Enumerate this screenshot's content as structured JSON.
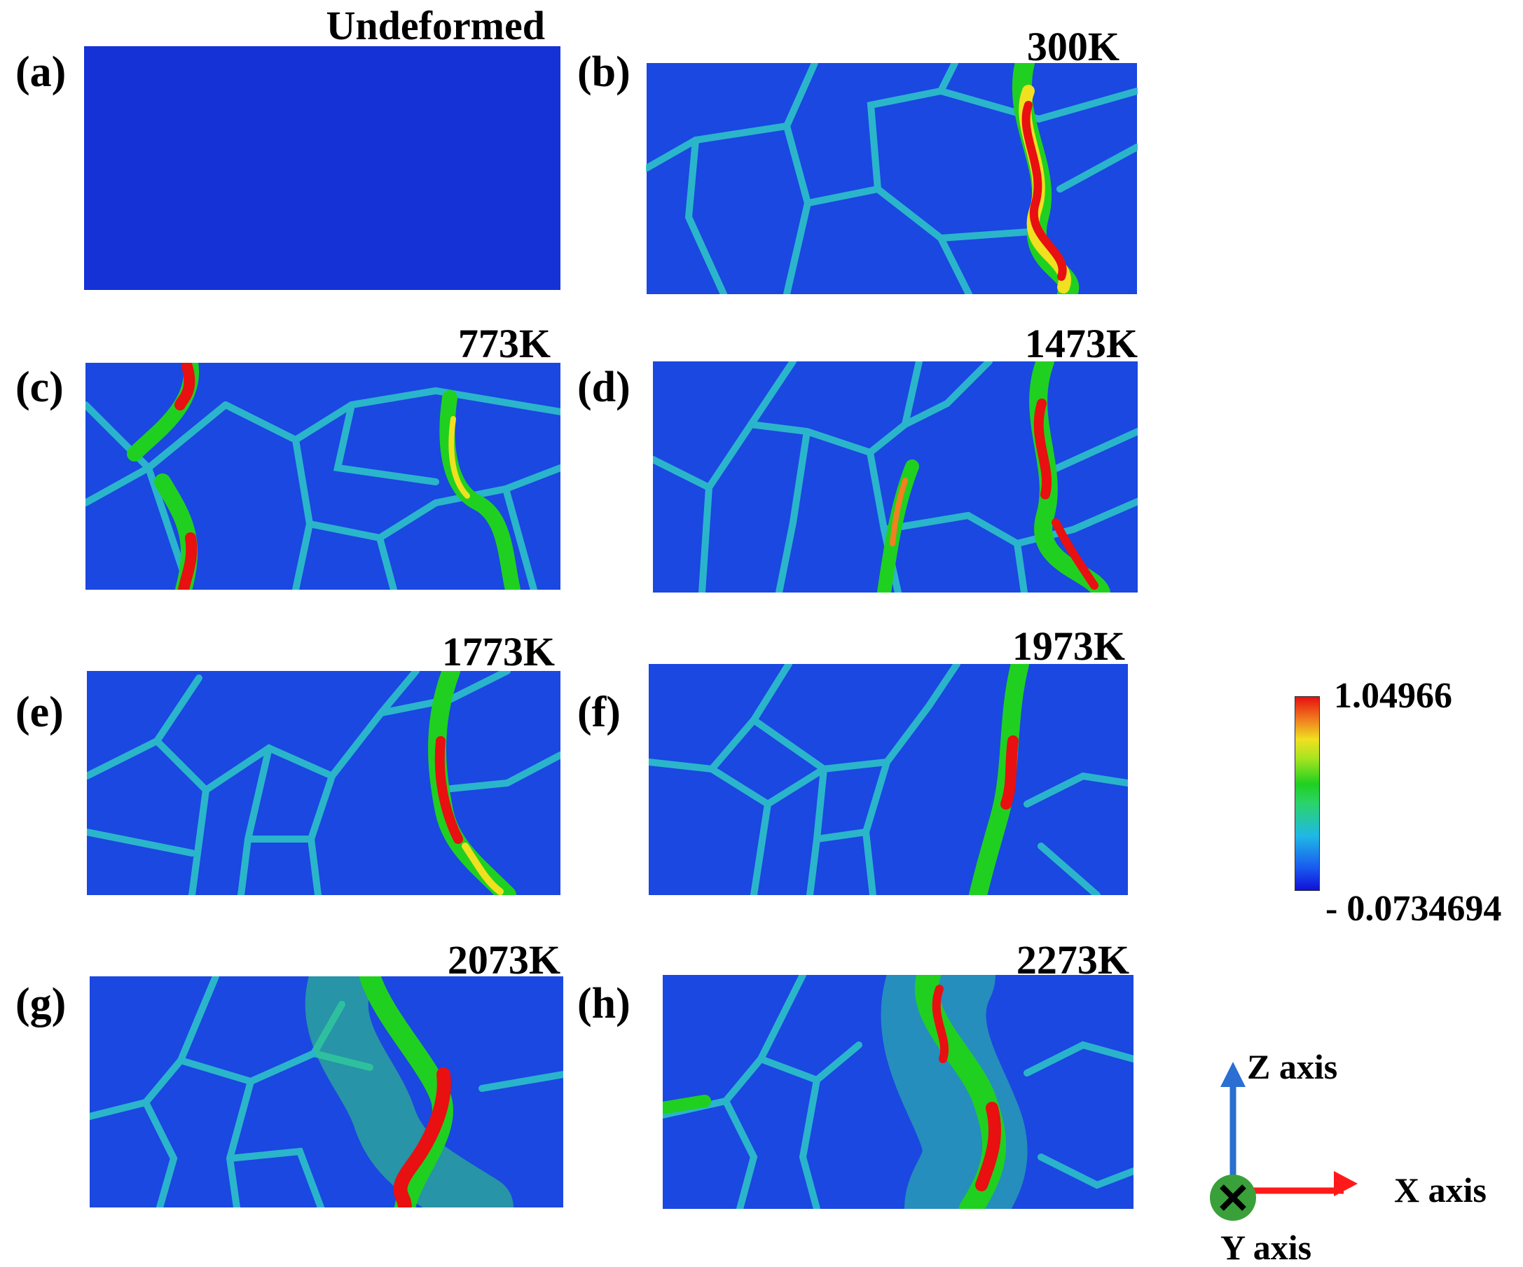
{
  "panels": [
    {
      "label": "(a)",
      "title": "Undeformed"
    },
    {
      "label": "(b)",
      "title": "300K"
    },
    {
      "label": "(c)",
      "title": "773K"
    },
    {
      "label": "(d)",
      "title": "1473K"
    },
    {
      "label": "(e)",
      "title": "1773K"
    },
    {
      "label": "(f)",
      "title": "1973K"
    },
    {
      "label": "(g)",
      "title": "2073K"
    },
    {
      "label": "(h)",
      "title": "2273K"
    }
  ],
  "colorbar": {
    "max_label": "1.04966",
    "min_label": "- 0.0734694",
    "colors": [
      "#e81010",
      "#f0e020",
      "#20d020",
      "#1fb8e6",
      "#1010d8"
    ]
  },
  "axes": {
    "z_label": "Z axis",
    "x_label": "X axis",
    "y_label": "Y axis",
    "z_color": "#2a6fd1",
    "x_color": "#ff1a1a",
    "y_color": "#3aa03a"
  }
}
